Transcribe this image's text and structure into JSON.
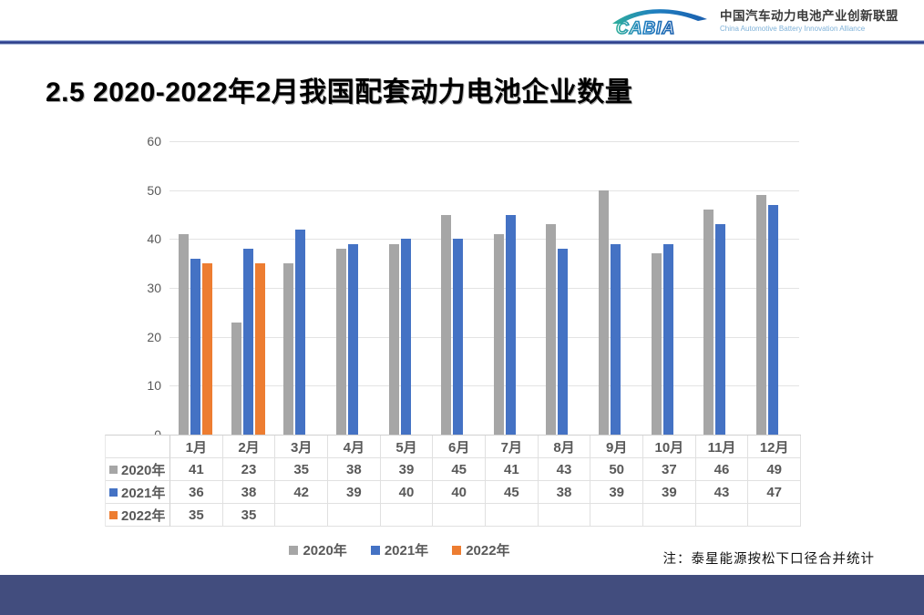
{
  "header": {
    "logo_text": "CABIA",
    "org_name_cn": "中国汽车动力电池产业创新联盟",
    "org_name_en": "China Automotive Battery Innovation Alliance"
  },
  "title": "2.5 2020-2022年2月我国配套动力电池企业数量",
  "note": "注：泰星能源按松下口径合并统计",
  "colors": {
    "series_2020": "#A6A6A6",
    "series_2021": "#4472C4",
    "series_2022": "#ED7D31",
    "footer_bar": "#424D7E",
    "divider_navy": "#27387F",
    "axis_text": "#595959",
    "gridline": "#E3E3E3"
  },
  "chart_data": {
    "type": "bar",
    "title": "",
    "xlabel": "",
    "ylabel": "",
    "categories": [
      "1月",
      "2月",
      "3月",
      "4月",
      "5月",
      "6月",
      "7月",
      "8月",
      "9月",
      "10月",
      "11月",
      "12月"
    ],
    "series": [
      {
        "name": "2020年",
        "color": "#A6A6A6",
        "values": [
          41,
          23,
          35,
          38,
          39,
          45,
          41,
          43,
          50,
          37,
          46,
          49
        ]
      },
      {
        "name": "2021年",
        "color": "#4472C4",
        "values": [
          36,
          38,
          42,
          39,
          40,
          40,
          45,
          38,
          39,
          39,
          43,
          47
        ]
      },
      {
        "name": "2022年",
        "color": "#ED7D31",
        "values": [
          35,
          35,
          null,
          null,
          null,
          null,
          null,
          null,
          null,
          null,
          null,
          null
        ]
      }
    ],
    "ylim": [
      0,
      60
    ],
    "ytick_interval": 10,
    "yticks": [
      0,
      10,
      20,
      30,
      40,
      50,
      60
    ],
    "grid": true,
    "legend_position": "bottom",
    "show_data_table": true
  }
}
